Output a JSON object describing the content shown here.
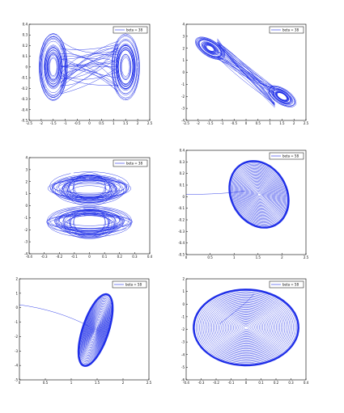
{
  "chart_data": [
    {
      "type": "line",
      "legend": {
        "label": "beta = 38",
        "placement": "top-right"
      },
      "xlim": [
        -2.5,
        2.5
      ],
      "ylim": [
        -0.5,
        0.4
      ],
      "xticks": [
        "-2.5",
        "-2",
        "-1.5",
        "-1",
        "-0.5",
        "0",
        "0.5",
        "1",
        "1.5",
        "2",
        "2.5"
      ],
      "yticks": [
        "0.4",
        "0.3",
        "0.2",
        "0.1",
        "0",
        "-0.1",
        "-0.2",
        "-0.3",
        "-0.4",
        "-0.5"
      ],
      "color": "#1f2fe8",
      "series": [
        {
          "name": "beta = 38",
          "attractor": "double-scroll",
          "centers": [
            [
              -1.5,
              0.0
            ],
            [
              1.5,
              0.0
            ]
          ],
          "spread_x": 0.6,
          "spread_y": 0.32
        }
      ]
    },
    {
      "type": "line",
      "legend": {
        "label": "beta = 38",
        "placement": "top-right"
      },
      "xlim": [
        -2.5,
        2.5
      ],
      "ylim": [
        -4,
        4
      ],
      "xticks": [
        "-2.5",
        "-2",
        "-1.5",
        "-1",
        "-0.5",
        "0",
        "0.5",
        "1",
        "1.5",
        "2",
        "2.5"
      ],
      "yticks": [
        "4",
        "3",
        "2",
        "1",
        "0",
        "-1",
        "-2",
        "-3",
        "-4"
      ],
      "color": "#1f2fe8",
      "series": [
        {
          "name": "beta = 38",
          "attractor": "double-scroll-tilted",
          "centers": [
            [
              -1.5,
              2.0
            ],
            [
              1.5,
              -2.0
            ]
          ],
          "spread_x": 0.7,
          "spread_y": 1.2
        }
      ]
    },
    {
      "type": "line",
      "legend": {
        "label": "beta = 38",
        "placement": "top-right"
      },
      "xlim": [
        -0.4,
        0.4
      ],
      "ylim": [
        -4,
        4
      ],
      "xticks": [
        "-0.4",
        "-0.3",
        "-0.2",
        "-0.1",
        "0",
        "0.1",
        "0.2",
        "0.3",
        "0.4"
      ],
      "yticks": [
        "4",
        "3",
        "2",
        "1",
        "0",
        "-1",
        "-2",
        "-3",
        "-4"
      ],
      "color": "#1f2fe8",
      "series": [
        {
          "name": "beta = 38",
          "attractor": "stacked-rings",
          "centers": [
            [
              0.0,
              1.4
            ],
            [
              0.0,
              -1.4
            ]
          ],
          "spread_x": 0.29,
          "spread_y": 1.2
        }
      ]
    },
    {
      "type": "line",
      "legend": {
        "label": "beta = 58",
        "placement": "top-right"
      },
      "xlim": [
        0,
        2.5
      ],
      "ylim": [
        -0.5,
        0.4
      ],
      "xticks": [
        "0",
        "0.5",
        "1",
        "1.5",
        "2",
        "2.5"
      ],
      "yticks": [
        "0.4",
        "0.3",
        "0.2",
        "0.1",
        "0",
        "-0.1",
        "-0.2",
        "-0.3",
        "-0.4",
        "-0.5"
      ],
      "color": "#1f2fe8",
      "series": [
        {
          "name": "beta = 58",
          "attractor": "spiral-to-point",
          "center": [
            1.52,
            0.02
          ],
          "spread_x": 0.58,
          "spread_y": 0.3,
          "tilt": -0.5,
          "start": [
            0.0,
            0.02
          ]
        }
      ]
    },
    {
      "type": "line",
      "legend": {
        "label": "beta = 58",
        "placement": "top-right"
      },
      "xlim": [
        0,
        2.5
      ],
      "ylim": [
        -5,
        2
      ],
      "xticks": [
        "0",
        "0.5",
        "1",
        "1.5",
        "2",
        "2.5"
      ],
      "yticks": [
        "2",
        "1",
        "0",
        "-1",
        "-2",
        "-3",
        "-4",
        "-5"
      ],
      "color": "#1f2fe8",
      "series": [
        {
          "name": "beta = 58",
          "attractor": "spiral-to-point",
          "center": [
            1.47,
            -1.55
          ],
          "spread_x": 0.25,
          "spread_y": 2.6,
          "tilt": 0.32,
          "start": [
            0.0,
            0.2
          ]
        }
      ]
    },
    {
      "type": "line",
      "legend": {
        "label": "beta = 58",
        "placement": "top-right"
      },
      "xlim": [
        -0.4,
        0.4
      ],
      "ylim": [
        -6,
        2
      ],
      "xticks": [
        "-0.4",
        "-0.3",
        "-0.2",
        "-0.1",
        "0",
        "0.1",
        "0.2",
        "0.3",
        "0.4"
      ],
      "yticks": [
        "2",
        "1",
        "0",
        "-1",
        "-2",
        "-3",
        "-4",
        "-5",
        "-6"
      ],
      "color": "#1f2fe8",
      "series": [
        {
          "name": "beta = 58",
          "attractor": "spiral-to-point",
          "center": [
            0.0,
            -1.85
          ],
          "spread_x": 0.35,
          "spread_y": 3.0,
          "tilt": 0.0,
          "start": [
            0.05,
            0.8
          ]
        }
      ]
    }
  ]
}
